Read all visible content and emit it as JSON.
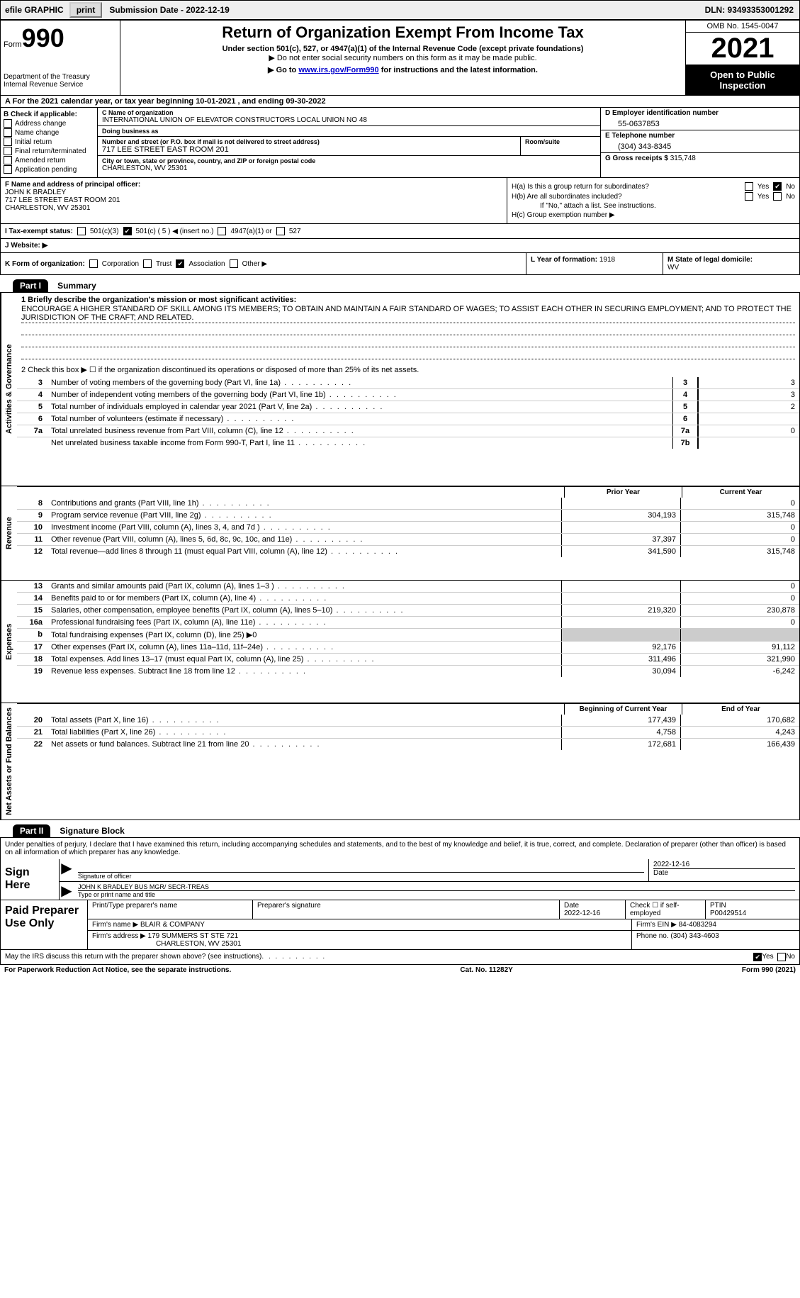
{
  "colors": {
    "black": "#000000",
    "white": "#ffffff",
    "gray_bg": "#efefef",
    "shade": "#cccccc",
    "link": "#0000cc"
  },
  "fonts": {
    "base_family": "Arial",
    "base_size": 11,
    "title_size": 22,
    "year_size": 40,
    "form_size": 36,
    "small": 10,
    "tiny": 9
  },
  "topbar": {
    "efile": "efile GRAPHIC",
    "print": "print",
    "submission": "Submission Date - 2022-12-19",
    "dln": "DLN: 93493353001292"
  },
  "header": {
    "form_word": "Form",
    "form_num": "990",
    "dept": "Department of the Treasury",
    "irs": "Internal Revenue Service",
    "title": "Return of Organization Exempt From Income Tax",
    "sub1": "Under section 501(c), 527, or 4947(a)(1) of the Internal Revenue Code (except private foundations)",
    "sub2": "▶ Do not enter social security numbers on this form as it may be made public.",
    "sub3_pre": "▶ Go to ",
    "sub3_link": "www.irs.gov/Form990",
    "sub3_post": " for instructions and the latest information.",
    "omb": "OMB No. 1545-0047",
    "year": "2021",
    "open": "Open to Public Inspection"
  },
  "rowA": "A For the 2021 calendar year, or tax year beginning 10-01-2021   , and ending 09-30-2022",
  "B": {
    "hdr": "B Check if applicable:",
    "items": [
      "Address change",
      "Name change",
      "Initial return",
      "Final return/terminated",
      "Amended return",
      "Application pending"
    ]
  },
  "C": {
    "name_lbl": "C Name of organization",
    "name": "INTERNATIONAL UNION OF ELEVATOR CONSTRUCTORS LOCAL UNION NO 48",
    "dba_lbl": "Doing business as",
    "dba": "",
    "addr_lbl": "Number and street (or P.O. box if mail is not delivered to street address)",
    "addr": "717 LEE STREET EAST ROOM 201",
    "suite_lbl": "Room/suite",
    "city_lbl": "City or town, state or province, country, and ZIP or foreign postal code",
    "city": "CHARLESTON, WV  25301"
  },
  "D": {
    "lbl": "D Employer identification number",
    "val": "55-0637853"
  },
  "E": {
    "lbl": "E Telephone number",
    "val": "(304) 343-8345"
  },
  "G": {
    "lbl": "G Gross receipts $",
    "val": "315,748"
  },
  "F": {
    "lbl": "F  Name and address of principal officer:",
    "name": "JOHN K BRADLEY",
    "addr1": "717 LEE STREET EAST ROOM 201",
    "addr2": "CHARLESTON, WV  25301"
  },
  "H": {
    "a": "H(a)  Is this a group return for subordinates?",
    "a_yes": "Yes",
    "a_no": "No",
    "a_checked": "No",
    "b": "H(b)  Are all subordinates included?",
    "b_yes": "Yes",
    "b_no": "No",
    "b_note": "If \"No,\" attach a list. See instructions.",
    "c": "H(c)  Group exemption number ▶"
  },
  "I": {
    "lbl": "I   Tax-exempt status:",
    "o1": "501(c)(3)",
    "o2": "501(c) ( 5 ) ◀ (insert no.)",
    "o2_checked": true,
    "o3": "4947(a)(1) or",
    "o4": "527"
  },
  "J": {
    "lbl": "J   Website: ▶"
  },
  "K": {
    "lbl": "K Form of organization:",
    "o1": "Corporation",
    "o2": "Trust",
    "o3": "Association",
    "o3_checked": true,
    "o4": "Other ▶"
  },
  "L": {
    "lbl": "L Year of formation:",
    "val": "1918"
  },
  "M": {
    "lbl": "M State of legal domicile:",
    "val": "WV"
  },
  "partI": {
    "hdr": "Part I",
    "title": "Summary"
  },
  "activities": {
    "side": "Activities & Governance",
    "l1_lbl": "1   Briefly describe the organization's mission or most significant activities:",
    "l1_txt": "ENCOURAGE A HIGHER STANDARD OF SKILL AMONG ITS MEMBERS; TO OBTAIN AND MAINTAIN A FAIR STANDARD OF WAGES; TO ASSIST EACH OTHER IN SECURING EMPLOYMENT; AND TO PROTECT THE JURISDICTION OF THE CRAFT; AND RELATED.",
    "l2": "2   Check this box ▶ ☐  if the organization discontinued its operations or disposed of more than 25% of its net assets.",
    "rows": [
      {
        "n": "3",
        "d": "Number of voting members of the governing body (Part VI, line 1a)",
        "box": "3",
        "v": "3"
      },
      {
        "n": "4",
        "d": "Number of independent voting members of the governing body (Part VI, line 1b)",
        "box": "4",
        "v": "3"
      },
      {
        "n": "5",
        "d": "Total number of individuals employed in calendar year 2021 (Part V, line 2a)",
        "box": "5",
        "v": "2"
      },
      {
        "n": "6",
        "d": "Total number of volunteers (estimate if necessary)",
        "box": "6",
        "v": ""
      },
      {
        "n": "7a",
        "d": "Total unrelated business revenue from Part VIII, column (C), line 12",
        "box": "7a",
        "v": "0"
      },
      {
        "n": "",
        "d": "Net unrelated business taxable income from Form 990-T, Part I, line 11",
        "box": "7b",
        "v": ""
      }
    ]
  },
  "revenue": {
    "side": "Revenue",
    "hdr_prior": "Prior Year",
    "hdr_curr": "Current Year",
    "rows": [
      {
        "n": "8",
        "d": "Contributions and grants (Part VIII, line 1h)",
        "p": "",
        "c": "0"
      },
      {
        "n": "9",
        "d": "Program service revenue (Part VIII, line 2g)",
        "p": "304,193",
        "c": "315,748"
      },
      {
        "n": "10",
        "d": "Investment income (Part VIII, column (A), lines 3, 4, and 7d )",
        "p": "",
        "c": "0"
      },
      {
        "n": "11",
        "d": "Other revenue (Part VIII, column (A), lines 5, 6d, 8c, 9c, 10c, and 11e)",
        "p": "37,397",
        "c": "0"
      },
      {
        "n": "12",
        "d": "Total revenue—add lines 8 through 11 (must equal Part VIII, column (A), line 12)",
        "p": "341,590",
        "c": "315,748"
      }
    ]
  },
  "expenses": {
    "side": "Expenses",
    "rows": [
      {
        "n": "13",
        "d": "Grants and similar amounts paid (Part IX, column (A), lines 1–3 )",
        "p": "",
        "c": "0"
      },
      {
        "n": "14",
        "d": "Benefits paid to or for members (Part IX, column (A), line 4)",
        "p": "",
        "c": "0"
      },
      {
        "n": "15",
        "d": "Salaries, other compensation, employee benefits (Part IX, column (A), lines 5–10)",
        "p": "219,320",
        "c": "230,878"
      },
      {
        "n": "16a",
        "d": "Professional fundraising fees (Part IX, column (A), line 11e)",
        "p": "",
        "c": "0"
      },
      {
        "n": "b",
        "d": "Total fundraising expenses (Part IX, column (D), line 25) ▶0",
        "p": "shade",
        "c": "shade"
      },
      {
        "n": "17",
        "d": "Other expenses (Part IX, column (A), lines 11a–11d, 11f–24e)",
        "p": "92,176",
        "c": "91,112"
      },
      {
        "n": "18",
        "d": "Total expenses. Add lines 13–17 (must equal Part IX, column (A), line 25)",
        "p": "311,496",
        "c": "321,990"
      },
      {
        "n": "19",
        "d": "Revenue less expenses. Subtract line 18 from line 12",
        "p": "30,094",
        "c": "-6,242"
      }
    ]
  },
  "netassets": {
    "side": "Net Assets or Fund Balances",
    "hdr_beg": "Beginning of Current Year",
    "hdr_end": "End of Year",
    "rows": [
      {
        "n": "20",
        "d": "Total assets (Part X, line 16)",
        "p": "177,439",
        "c": "170,682"
      },
      {
        "n": "21",
        "d": "Total liabilities (Part X, line 26)",
        "p": "4,758",
        "c": "4,243"
      },
      {
        "n": "22",
        "d": "Net assets or fund balances. Subtract line 21 from line 20",
        "p": "172,681",
        "c": "166,439"
      }
    ]
  },
  "partII": {
    "hdr": "Part II",
    "title": "Signature Block"
  },
  "sig": {
    "decl": "Under penalties of perjury, I declare that I have examined this return, including accompanying schedules and statements, and to the best of my knowledge and belief, it is true, correct, and complete. Declaration of preparer (other than officer) is based on all information of which preparer has any knowledge.",
    "sign_here": "Sign Here",
    "sig_officer": "Signature of officer",
    "date": "2022-12-16",
    "date_lbl": "Date",
    "name": "JOHN K BRADLEY  BUS MGR/ SECR-TREAS",
    "name_lbl": "Type or print name and title"
  },
  "paid": {
    "hdr": "Paid Preparer Use Only",
    "r1": {
      "c1": "Print/Type preparer's name",
      "c2": "Preparer's signature",
      "c3": "Date",
      "c3v": "2022-12-16",
      "c4": "Check ☐ if self-employed",
      "c5": "PTIN",
      "c5v": "P00429514"
    },
    "r2": {
      "c1": "Firm's name    ▶",
      "c1v": "BLAIR & COMPANY",
      "c2": "Firm's EIN ▶",
      "c2v": "84-4083294"
    },
    "r3": {
      "c1": "Firm's address ▶",
      "c1v": "179 SUMMERS ST STE 721",
      "c1v2": "CHARLESTON, WV  25301",
      "c2": "Phone no.",
      "c2v": "(304) 343-4603"
    }
  },
  "discuss": {
    "txt": "May the IRS discuss this return with the preparer shown above? (see instructions)",
    "yes": "Yes",
    "no": "No",
    "checked": "Yes"
  },
  "footer": {
    "l": "For Paperwork Reduction Act Notice, see the separate instructions.",
    "c": "Cat. No. 11282Y",
    "r": "Form 990 (2021)"
  }
}
